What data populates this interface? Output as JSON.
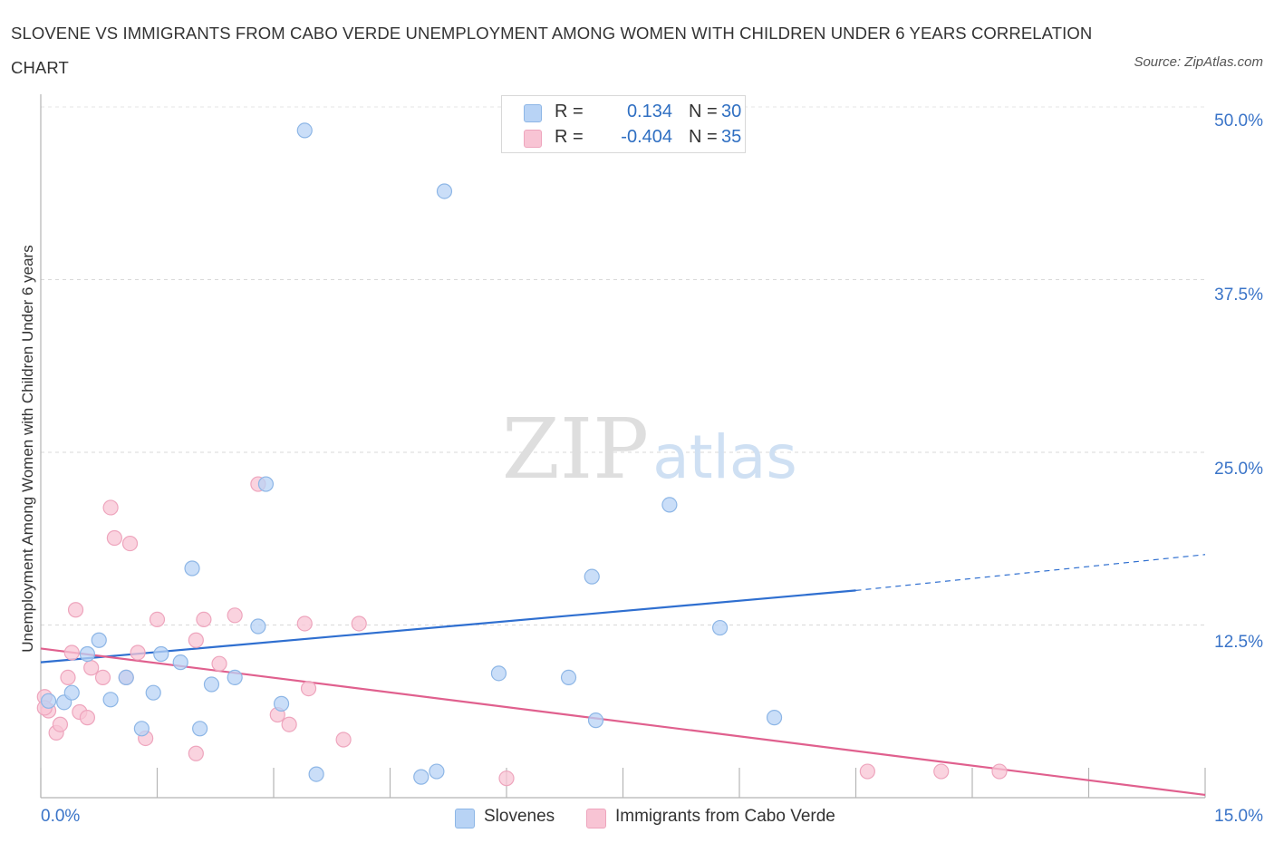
{
  "title": "SLOVENE VS IMMIGRANTS FROM CABO VERDE UNEMPLOYMENT AMONG WOMEN WITH CHILDREN UNDER 6 YEARS CORRELATION CHART",
  "source": "Source: ZipAtlas.com",
  "watermark": {
    "zip": "ZIP",
    "atlas": "atlas"
  },
  "legend": {
    "slovene": {
      "r_label": "R =",
      "r_value": "0.134",
      "n_label": "N =",
      "n_value": "30"
    },
    "caboverde": {
      "r_label": "R =",
      "r_value": "-0.404",
      "n_label": "N =",
      "n_value": "35"
    }
  },
  "bottom_legend": {
    "slovene": "Slovenes",
    "caboverde": "Immigrants from Cabo Verde"
  },
  "x_tick_labels": {
    "left": "0.0%",
    "right": "15.0%"
  },
  "y_tick_labels": [
    "50.0%",
    "37.5%",
    "25.0%",
    "12.5%"
  ],
  "colors": {
    "slovene_fill": "#b8d3f5",
    "slovene_stroke": "#8db6e6",
    "slovene_line": "#2f6fd0",
    "cabo_fill": "#f8c4d4",
    "cabo_stroke": "#eea5bd",
    "cabo_line": "#e0608e",
    "tick_label": "#3a74c8"
  },
  "chart_data": {
    "type": "scatter",
    "xlabel": "",
    "ylabel": "Unemployment Among Women with Children Under 6 years",
    "xlim": [
      0,
      15
    ],
    "ylim": [
      0,
      50
    ],
    "y_ticks": [
      12.5,
      25.0,
      37.5,
      50.0
    ],
    "grid": true,
    "legend_position": "top-center",
    "series": [
      {
        "name": "Slovenes",
        "points": [
          [
            0.1,
            7.0
          ],
          [
            0.3,
            6.9
          ],
          [
            0.4,
            7.6
          ],
          [
            0.6,
            10.4
          ],
          [
            0.75,
            11.4
          ],
          [
            0.9,
            7.1
          ],
          [
            1.1,
            8.7
          ],
          [
            1.3,
            5.0
          ],
          [
            1.45,
            7.6
          ],
          [
            1.55,
            10.4
          ],
          [
            1.8,
            9.8
          ],
          [
            1.95,
            16.6
          ],
          [
            2.05,
            5.0
          ],
          [
            2.2,
            8.2
          ],
          [
            2.5,
            8.7
          ],
          [
            2.8,
            12.4
          ],
          [
            2.9,
            22.7
          ],
          [
            3.1,
            6.8
          ],
          [
            3.4,
            48.3
          ],
          [
            3.55,
            1.7
          ],
          [
            4.9,
            1.5
          ],
          [
            5.1,
            1.9
          ],
          [
            5.2,
            43.9
          ],
          [
            5.9,
            9.0
          ],
          [
            6.8,
            8.7
          ],
          [
            7.1,
            16.0
          ],
          [
            7.15,
            5.6
          ],
          [
            8.1,
            21.2
          ],
          [
            8.75,
            12.3
          ],
          [
            9.45,
            5.8
          ]
        ],
        "trend": {
          "x0": 0,
          "y0": 9.8,
          "x1": 10.5,
          "y1": 15.0,
          "dashed_to_x": 15.0,
          "dashed_to_y": 17.6
        }
      },
      {
        "name": "Immigrants from Cabo Verde",
        "points": [
          [
            0.05,
            7.3
          ],
          [
            0.1,
            6.3
          ],
          [
            0.2,
            4.7
          ],
          [
            0.25,
            5.3
          ],
          [
            0.35,
            8.7
          ],
          [
            0.4,
            10.5
          ],
          [
            0.45,
            13.6
          ],
          [
            0.5,
            6.2
          ],
          [
            0.6,
            5.8
          ],
          [
            0.65,
            9.4
          ],
          [
            0.8,
            8.7
          ],
          [
            0.9,
            21.0
          ],
          [
            0.95,
            18.8
          ],
          [
            1.1,
            8.7
          ],
          [
            1.15,
            18.4
          ],
          [
            1.25,
            10.5
          ],
          [
            1.35,
            4.3
          ],
          [
            1.5,
            12.9
          ],
          [
            2.0,
            11.4
          ],
          [
            2.0,
            3.2
          ],
          [
            2.1,
            12.9
          ],
          [
            2.3,
            9.7
          ],
          [
            2.5,
            13.2
          ],
          [
            2.8,
            22.7
          ],
          [
            3.05,
            6.0
          ],
          [
            3.2,
            5.3
          ],
          [
            3.4,
            12.6
          ],
          [
            3.45,
            7.9
          ],
          [
            3.9,
            4.2
          ],
          [
            4.1,
            12.6
          ],
          [
            6.0,
            1.4
          ],
          [
            10.65,
            1.9
          ],
          [
            11.6,
            1.9
          ],
          [
            12.35,
            1.9
          ],
          [
            0.05,
            6.5
          ]
        ],
        "trend": {
          "x0": 0,
          "y0": 10.8,
          "x1": 15.0,
          "y1": 0.2
        }
      }
    ]
  }
}
